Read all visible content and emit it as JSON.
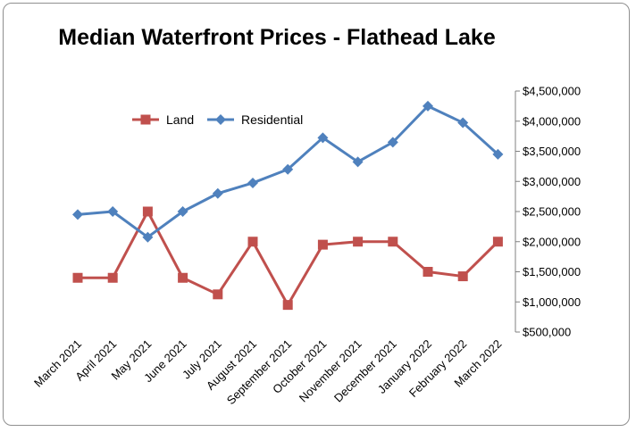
{
  "chart_data": {
    "type": "line",
    "title": "Median Waterfront Prices - Flathead Lake",
    "xlabel": "",
    "ylabel": "",
    "categories": [
      "March 2021",
      "April 2021",
      "May 2021",
      "June 2021",
      "July 2021",
      "August 2021",
      "September 2021",
      "October 2021",
      "November 2021",
      "December 2021",
      "January 2022",
      "February 2022",
      "March 2022"
    ],
    "ylim": [
      500000,
      4500000
    ],
    "yticks": [
      500000,
      1000000,
      1500000,
      2000000,
      2500000,
      3000000,
      3500000,
      4000000,
      4500000
    ],
    "ytick_labels": [
      "$500,000",
      "$1,000,000",
      "$1,500,000",
      "$2,000,000",
      "$2,500,000",
      "$3,000,000",
      "$3,500,000",
      "$4,000,000",
      "$4,500,000"
    ],
    "grid": false,
    "legend_position": "top-left",
    "series": [
      {
        "name": "Land",
        "color": "#c0504d",
        "marker": "square",
        "values": [
          1400000,
          1400000,
          2500000,
          1400000,
          1125000,
          2000000,
          950000,
          1950000,
          2000000,
          2000000,
          1500000,
          1425000,
          2000000
        ]
      },
      {
        "name": "Residential",
        "color": "#4f81bd",
        "marker": "diamond",
        "values": [
          2450000,
          2500000,
          2075000,
          2500000,
          2800000,
          2975000,
          3200000,
          3725000,
          3325000,
          3650000,
          4250000,
          3975000,
          3450000
        ]
      }
    ]
  }
}
